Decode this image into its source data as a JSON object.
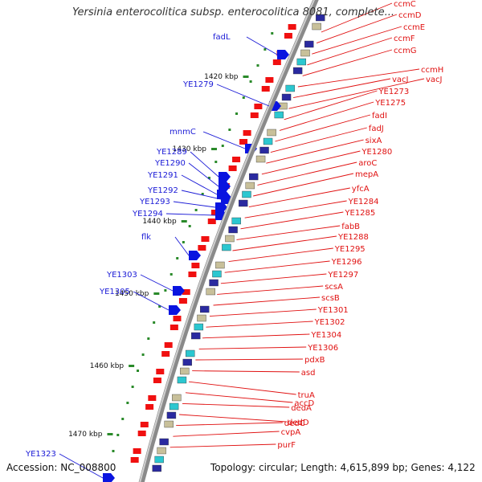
{
  "header": {
    "title": "Yersinia enterocolitica subsp. enterocolitica 8081, complete..."
  },
  "footer": {
    "accession_label": "Accession:",
    "accession": "NC_008800",
    "topology_label": "Topology:",
    "topology": "circular;",
    "length_label": "Length:",
    "length": "4,615,899 bp;",
    "genes_label": "Genes:",
    "genes": "4,122"
  },
  "colors": {
    "forward_label": "#1a1ad6",
    "reverse_label": "#e01010",
    "forward_cds": "#0a14e0",
    "reverse_cds": "#f01010",
    "tick": "#2a8a2a",
    "backbone": "#8a8a8a"
  },
  "ticks": [
    {
      "label": "1420 kbp"
    },
    {
      "label": "1430 kbp"
    },
    {
      "label": "1440 kbp"
    },
    {
      "label": "1450 kbp"
    },
    {
      "label": "1460 kbp"
    },
    {
      "label": "1470 kbp"
    }
  ],
  "forward_genes": [
    {
      "label": "fadL"
    },
    {
      "label": "YE1279"
    },
    {
      "label": "mnmC"
    },
    {
      "label": "YE1289"
    },
    {
      "label": "YE1290"
    },
    {
      "label": "YE1291"
    },
    {
      "label": "YE1292"
    },
    {
      "label": "YE1293"
    },
    {
      "label": "YE1294"
    },
    {
      "label": "flk"
    },
    {
      "label": "YE1303"
    },
    {
      "label": "YE1305"
    },
    {
      "label": "YE1323"
    }
  ],
  "reverse_genes": [
    {
      "label": "ccmC"
    },
    {
      "label": "ccmD"
    },
    {
      "label": "ccmE"
    },
    {
      "label": "ccmF"
    },
    {
      "label": "ccmG"
    },
    {
      "label": "ccmH"
    },
    {
      "label": "vacJ"
    },
    {
      "label": "vacJ"
    },
    {
      "label": "YE1273"
    },
    {
      "label": "YE1275"
    },
    {
      "label": "fadI"
    },
    {
      "label": "fadJ"
    },
    {
      "label": "sixA"
    },
    {
      "label": "YE1280"
    },
    {
      "label": "aroC"
    },
    {
      "label": "mepA"
    },
    {
      "label": "yfcA"
    },
    {
      "label": "YE1284"
    },
    {
      "label": "YE1285"
    },
    {
      "label": "fabB"
    },
    {
      "label": "YE1288"
    },
    {
      "label": "YE1295"
    },
    {
      "label": "YE1296"
    },
    {
      "label": "YE1297"
    },
    {
      "label": "scsA"
    },
    {
      "label": "scsB"
    },
    {
      "label": "YE1301"
    },
    {
      "label": "YE1302"
    },
    {
      "label": "YE1304"
    },
    {
      "label": "YE1306"
    },
    {
      "label": "pdxB"
    },
    {
      "label": "asd"
    },
    {
      "label": "truA"
    },
    {
      "label": "accD"
    },
    {
      "label": "dedA"
    },
    {
      "label": "dedD"
    },
    {
      "label": "dedC"
    },
    {
      "label": "cvpA"
    },
    {
      "label": "purF"
    }
  ]
}
